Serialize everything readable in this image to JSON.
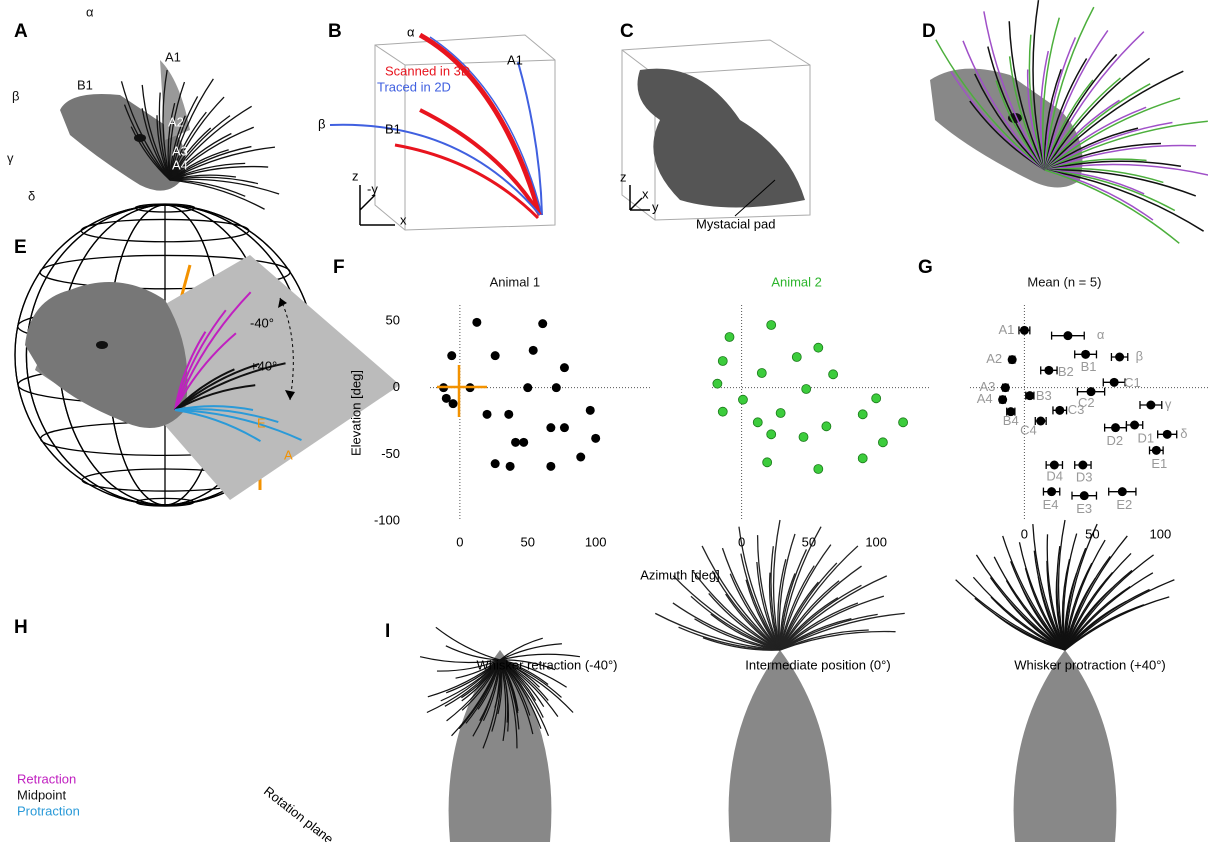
{
  "panel_labels": [
    "A",
    "B",
    "C",
    "D",
    "E",
    "F",
    "G",
    "H",
    "I"
  ],
  "panel_a": {
    "labels": [
      "α",
      "A1",
      "B1",
      "β",
      "A2",
      "A3",
      "A4",
      "γ",
      "δ"
    ]
  },
  "panel_b": {
    "legend": [
      "Scanned in 3D",
      "Traced in 2D"
    ],
    "labels": [
      "α",
      "A1",
      "B1",
      "β"
    ],
    "axes": [
      "z",
      "-y",
      "x"
    ]
  },
  "panel_c": {
    "axes": [
      "z",
      "x",
      "y"
    ],
    "annotation": "Mystacial pad"
  },
  "panel_e": {
    "labels": [
      "E",
      "A"
    ]
  },
  "panel_h": {
    "angles": [
      "-40°",
      "+40°"
    ],
    "legend": [
      "Retraction",
      "Midpoint",
      "Protraction"
    ],
    "plane": "Rotation plane"
  },
  "panel_i": {
    "titles": [
      "Whisker retraction (-40°)",
      "Intermediate position (0°)",
      "Whisker protraction (+40°)"
    ]
  },
  "chart_data": [
    {
      "type": "scatter",
      "title": "Animal 1",
      "xlabel": "Azimuth [deg]",
      "ylabel": "Elevation [deg]",
      "xlim": [
        -22,
        140
      ],
      "ylim": [
        -100,
        62
      ],
      "xticks": [
        0,
        50,
        100
      ],
      "yticks": [
        -100,
        -50,
        0,
        50
      ],
      "series": [
        {
          "color": "#000000",
          "x": [
            12.5,
            61,
            -6,
            26,
            54,
            77,
            -12,
            7.5,
            50,
            71,
            -10,
            -5,
            20,
            36,
            96,
            41,
            47,
            67,
            77,
            100,
            26,
            37,
            67,
            89
          ],
          "values": [
            49,
            48,
            24,
            24,
            28,
            15,
            0,
            0,
            0,
            0,
            -8,
            -12,
            -20,
            -20,
            -17,
            -41,
            -41,
            -30,
            -30,
            -38,
            -57,
            -59,
            -59,
            -52
          ]
        }
      ]
    },
    {
      "type": "scatter",
      "title": "Animal 2",
      "title_color": "#2db52d",
      "xlim": [
        -22,
        140
      ],
      "ylim": [
        -100,
        62
      ],
      "xticks": [
        0,
        50,
        100
      ],
      "series": [
        {
          "color": "#3ccc3c",
          "x": [
            22,
            -9,
            57,
            41,
            -14,
            -18,
            15,
            68,
            48,
            1,
            -14,
            29,
            12,
            22,
            46,
            63,
            100,
            90,
            120,
            105,
            90,
            19,
            57
          ],
          "values": [
            47,
            38,
            30,
            23,
            20,
            3,
            11,
            10,
            -1,
            -9,
            -18,
            -19,
            -26,
            -35,
            -37,
            -29,
            -8,
            -20,
            -26,
            -41,
            -53,
            -56,
            -61
          ]
        }
      ]
    },
    {
      "type": "errorbar",
      "title": "Mean (n = 5)",
      "xlim": [
        -40,
        135
      ],
      "ylim": [
        -100,
        62
      ],
      "xticks": [
        0,
        50,
        100
      ],
      "categories": [
        "A1",
        "α",
        "A2",
        "β",
        "B1",
        "B2",
        "A3",
        "C1",
        "B3",
        "C2",
        "A4",
        "γ",
        "C3",
        "B4",
        "D1",
        "D2",
        "δ",
        "C4",
        "D4",
        "D3",
        "E1",
        "E2",
        "E3",
        "E4"
      ],
      "series": [
        {
          "color": "#000000",
          "x": [
            0,
            32,
            -9,
            70,
            45,
            18,
            -14,
            66,
            4,
            49,
            -16,
            93,
            26,
            -10,
            81,
            67,
            105,
            12,
            22,
            43,
            97,
            72,
            44,
            20
          ],
          "values": [
            43,
            39,
            21,
            23,
            25,
            13,
            0,
            4,
            -6,
            -3,
            -9,
            -13,
            -17,
            -18,
            -28,
            -30,
            -35,
            -25,
            -58,
            -58,
            -47,
            -78,
            -81,
            -78
          ],
          "xerr": [
            4,
            12,
            2,
            6,
            8,
            6,
            2,
            8,
            3,
            10,
            2,
            8,
            5,
            3,
            6,
            8,
            7,
            4,
            6,
            6,
            5,
            10,
            9,
            6
          ]
        }
      ]
    }
  ]
}
